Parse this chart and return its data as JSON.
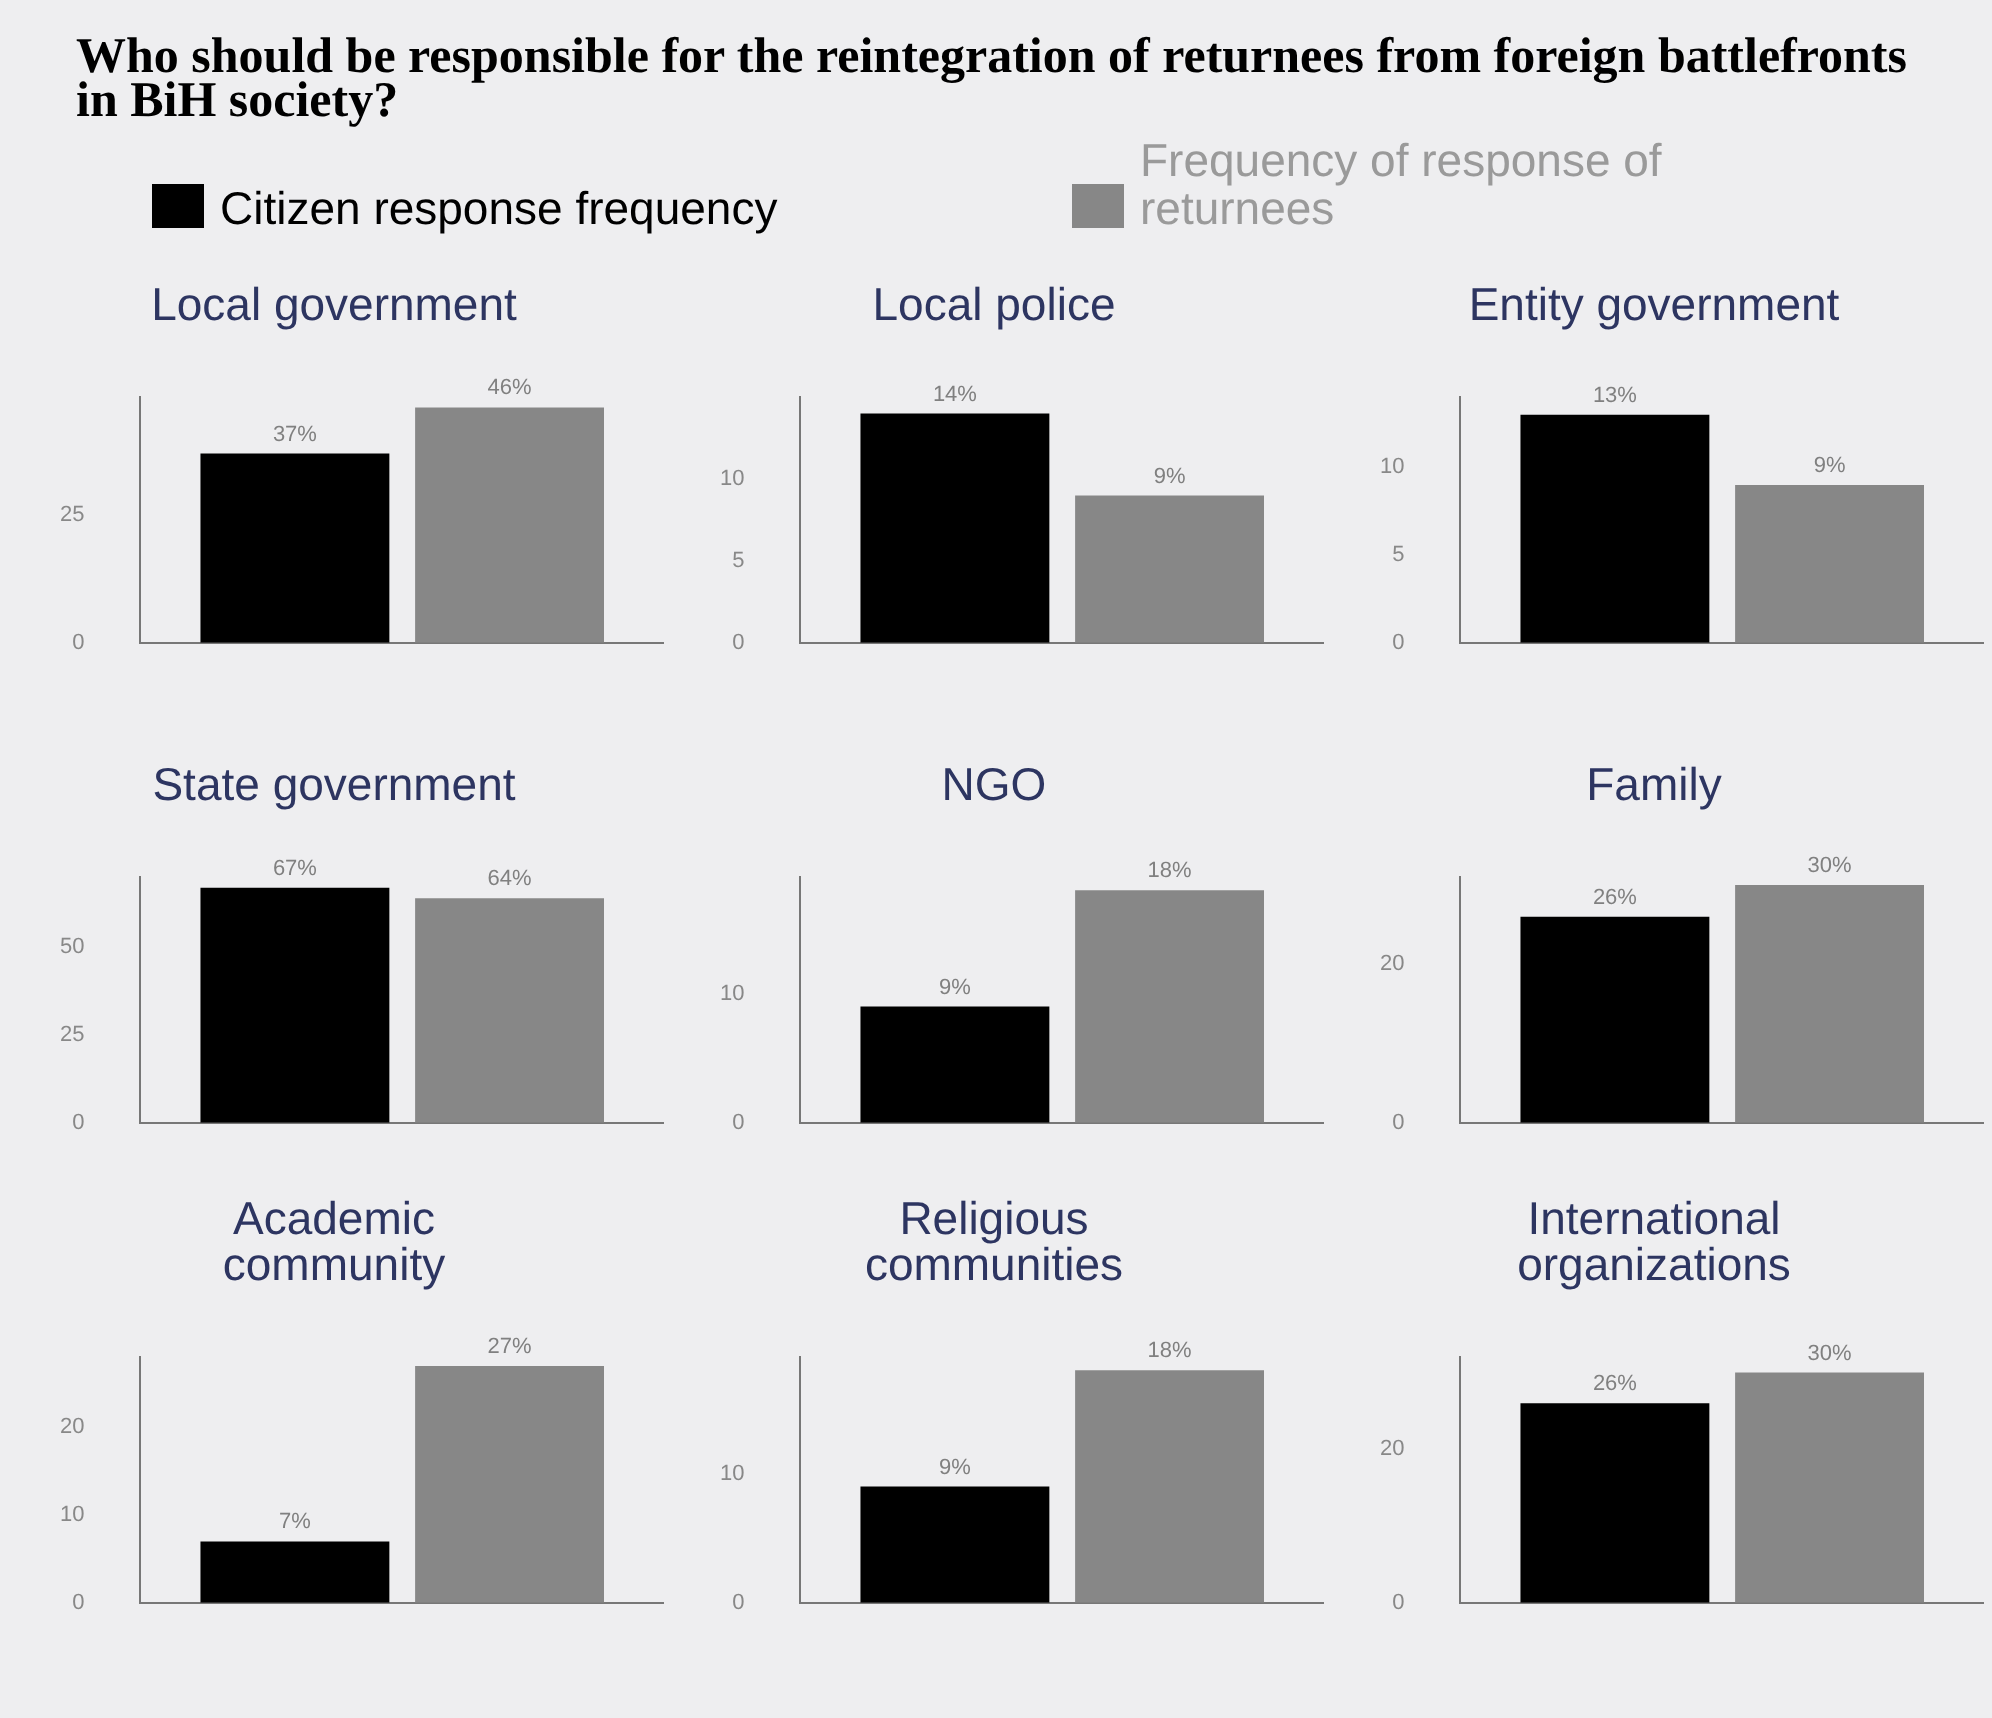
{
  "chart_data": [
    {
      "type": "bar",
      "title": "Who should be responsible for the reintegration of returnees from foreign battlefronts in BiH society?",
      "subtitle": "Local government",
      "categories": [
        null
      ],
      "legend": "top",
      "grid": false,
      "ylim": [
        0,
        48
      ],
      "yticks": [
        0,
        25
      ],
      "series": [
        {
          "name": "Citizen response frequency",
          "color": "#000000",
          "values": [
            37
          ],
          "value_labels": [
            "37%"
          ]
        },
        {
          "name": "Frequency of response of returnees",
          "color": "#878787",
          "values": [
            46
          ],
          "value_labels": [
            "46%"
          ]
        }
      ]
    },
    {
      "type": "bar",
      "subtitle": "Local police",
      "categories": [
        null
      ],
      "grid": false,
      "ylim": [
        0,
        15
      ],
      "yticks": [
        0,
        5,
        10
      ],
      "series": [
        {
          "color": "#000000",
          "values": [
            14
          ],
          "value_labels": [
            "14%"
          ]
        },
        {
          "color": "#878787",
          "values": [
            9
          ],
          "value_labels": [
            "9%"
          ]
        }
      ]
    },
    {
      "type": "bar",
      "subtitle": "Entity government",
      "categories": [
        null
      ],
      "grid": false,
      "ylim": [
        0,
        14
      ],
      "yticks": [
        0,
        5,
        10
      ],
      "series": [
        {
          "color": "#000000",
          "values": [
            13
          ],
          "value_labels": [
            "13%"
          ]
        },
        {
          "color": "#878787",
          "values": [
            9
          ],
          "value_labels": [
            "9%"
          ]
        }
      ]
    },
    {
      "type": "bar",
      "subtitle": "State government",
      "categories": [
        null
      ],
      "grid": false,
      "ylim": [
        0,
        70
      ],
      "yticks": [
        0,
        25,
        50
      ],
      "series": [
        {
          "color": "#000000",
          "values": [
            67
          ],
          "value_labels": [
            "67%"
          ]
        },
        {
          "color": "#878787",
          "values": [
            64
          ],
          "value_labels": [
            "64%"
          ]
        }
      ]
    },
    {
      "type": "bar",
      "subtitle": "NGO",
      "categories": [
        null
      ],
      "grid": false,
      "ylim": [
        0,
        19
      ],
      "yticks": [
        0,
        10
      ],
      "series": [
        {
          "color": "#000000",
          "values": [
            9
          ],
          "value_labels": [
            "9%"
          ]
        },
        {
          "color": "#878787",
          "values": [
            18
          ],
          "value_labels": [
            "18%"
          ]
        }
      ]
    },
    {
      "type": "bar",
      "subtitle": "Family",
      "categories": [
        null
      ],
      "grid": false,
      "ylim": [
        0,
        31
      ],
      "yticks": [
        0,
        20
      ],
      "series": [
        {
          "color": "#000000",
          "values": [
            26
          ],
          "value_labels": [
            "26%"
          ]
        },
        {
          "color": "#878787",
          "values": [
            30
          ],
          "value_labels": [
            "30%"
          ]
        }
      ]
    },
    {
      "type": "bar",
      "subtitle": "Academic community",
      "categories": [
        null
      ],
      "grid": false,
      "ylim": [
        0,
        28
      ],
      "yticks": [
        0,
        10,
        20
      ],
      "series": [
        {
          "color": "#000000",
          "values": [
            7
          ],
          "value_labels": [
            "7%"
          ]
        },
        {
          "color": "#878787",
          "values": [
            27
          ],
          "value_labels": [
            "27%"
          ]
        }
      ]
    },
    {
      "type": "bar",
      "subtitle": "Religious communities",
      "categories": [
        null
      ],
      "grid": false,
      "ylim": [
        0,
        19
      ],
      "yticks": [
        0,
        10
      ],
      "series": [
        {
          "color": "#000000",
          "values": [
            9
          ],
          "value_labels": [
            "9%"
          ]
        },
        {
          "color": "#878787",
          "values": [
            18
          ],
          "value_labels": [
            "18%"
          ]
        }
      ]
    },
    {
      "type": "bar",
      "subtitle": "International organizations",
      "categories": [
        null
      ],
      "grid": false,
      "ylim": [
        0,
        32
      ],
      "yticks": [
        0,
        20
      ],
      "series": [
        {
          "color": "#000000",
          "values": [
            26
          ],
          "value_labels": [
            "26%"
          ]
        },
        {
          "color": "#878787",
          "values": [
            30
          ],
          "value_labels": [
            "30%"
          ]
        }
      ]
    }
  ]
}
